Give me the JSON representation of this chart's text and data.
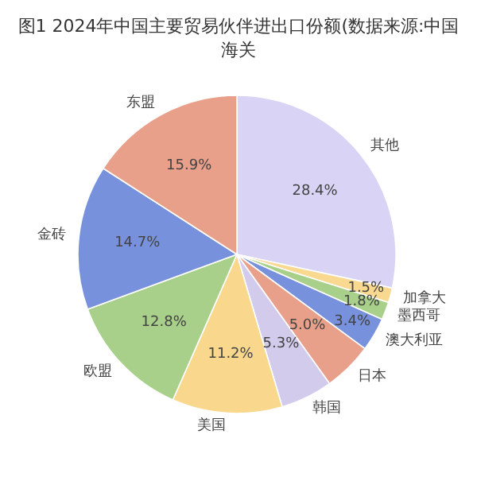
{
  "chart_data": {
    "type": "pie",
    "title": "图1 2024年中国主要贸易伙伴进出口份额(数据来源:中国海关",
    "categories": [
      "其他",
      "加拿大",
      "墨西哥",
      "澳大利亚",
      "日本",
      "韩国",
      "美国",
      "欧盟",
      "金砖",
      "东盟"
    ],
    "values": [
      28.4,
      1.5,
      1.8,
      3.4,
      5.0,
      5.3,
      11.2,
      12.8,
      14.7,
      15.9
    ],
    "value_labels": [
      "28.4%",
      "1.5%",
      "1.8%",
      "3.4%",
      "5.0%",
      "5.3%",
      "11.2%",
      "12.8%",
      "14.7%",
      "15.9%"
    ],
    "colors": [
      "#d9d3f5",
      "#f9d890",
      "#a8d08a",
      "#7891dc",
      "#e9a08a",
      "#d3cbec",
      "#f9d88e",
      "#a8d08a",
      "#7891dc",
      "#e9a08a"
    ]
  }
}
